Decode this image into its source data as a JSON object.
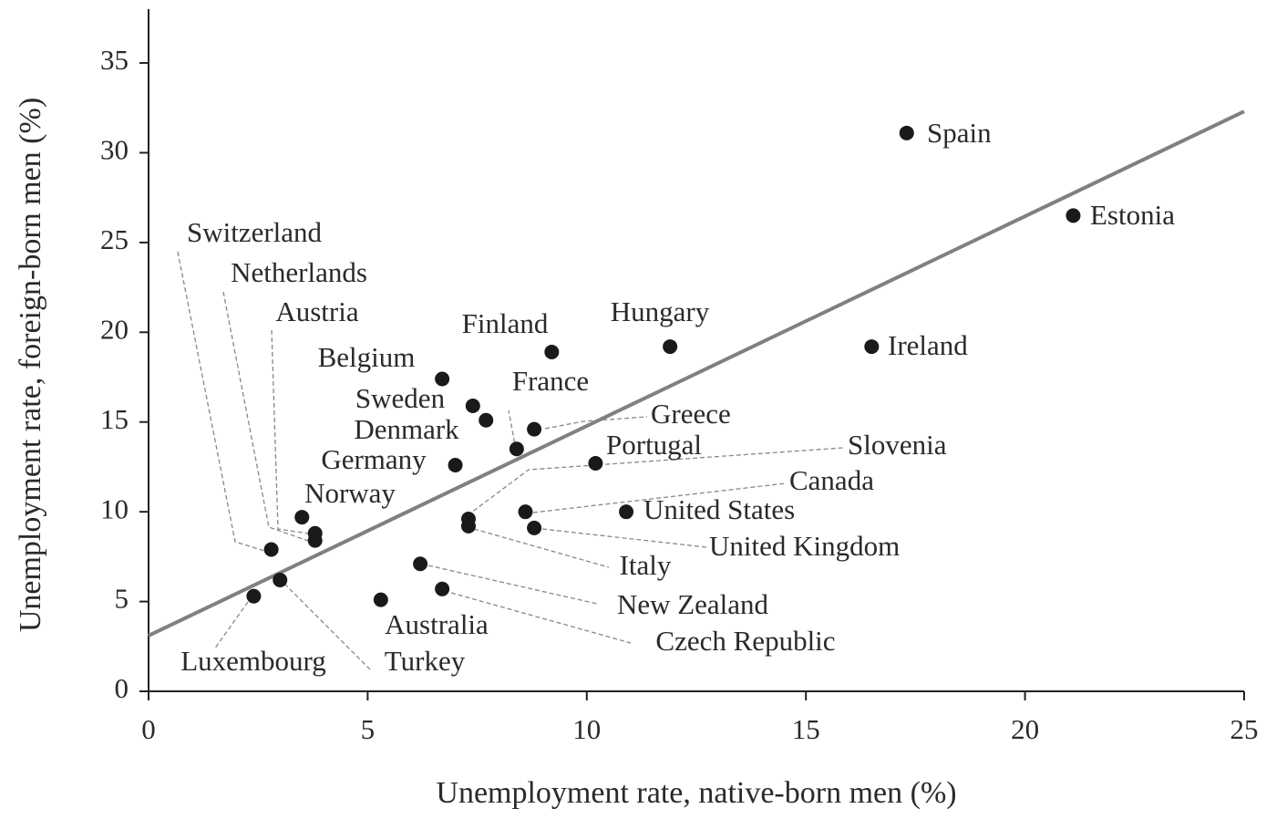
{
  "chart_data": {
    "type": "scatter",
    "x_label": "Unemployment rate, native-born men (%)",
    "y_label": "Unemployment rate, foreign-born men (%)",
    "xlim": [
      0,
      25
    ],
    "ylim": [
      0,
      38
    ],
    "xticks": [
      0,
      5,
      10,
      15,
      20,
      25
    ],
    "yticks": [
      0,
      5,
      10,
      15,
      20,
      25,
      30,
      35
    ],
    "color": "#1a1a1a",
    "trend_line": {
      "color": "#808080",
      "x": [
        0,
        25
      ],
      "y": [
        3.1,
        32.3
      ]
    },
    "points": {
      "labels": [
        "Spain",
        "Estonia",
        "Ireland",
        "Hungary",
        "Finland",
        "Belgium",
        "Sweden",
        "Denmark",
        "France",
        "Greece",
        "Portugal",
        "Germany",
        "Slovenia",
        "Italy",
        "Canada",
        "United Kingdom",
        "United States",
        "Norway",
        "Austria",
        "Netherlands",
        "Switzerland",
        "Turkey",
        "Luxembourg",
        "Australia",
        "New Zealand",
        "Czech Republic"
      ],
      "x": [
        17.3,
        21.1,
        16.5,
        11.9,
        9.2,
        6.7,
        7.4,
        7.7,
        8.4,
        8.8,
        10.2,
        7.0,
        7.3,
        7.3,
        8.6,
        8.8,
        10.9,
        3.5,
        3.8,
        3.8,
        2.8,
        3.0,
        2.4,
        5.3,
        6.2,
        6.7
      ],
      "y": [
        31.1,
        26.5,
        19.2,
        19.2,
        18.9,
        17.4,
        15.9,
        15.1,
        13.5,
        14.6,
        12.7,
        12.6,
        9.6,
        9.2,
        10.0,
        9.1,
        10.0,
        9.7,
        8.8,
        8.4,
        7.9,
        6.2,
        5.3,
        5.1,
        7.1,
        5.7
      ]
    }
  }
}
